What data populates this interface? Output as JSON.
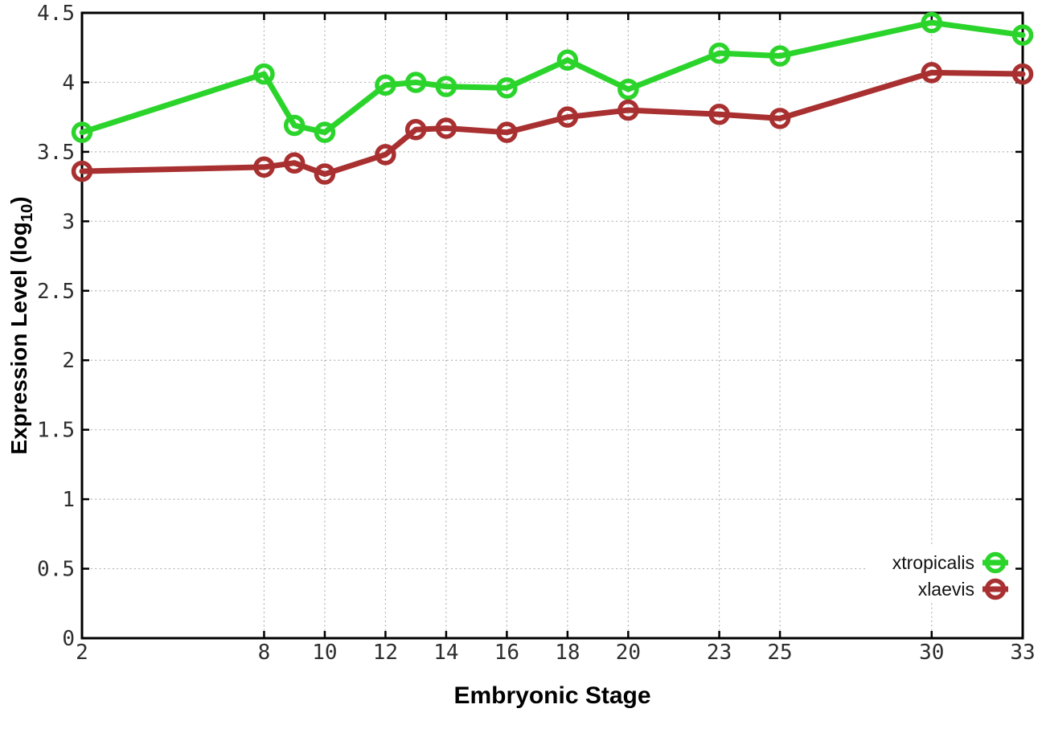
{
  "figure": {
    "background": "#ffffff"
  },
  "chart_data": {
    "type": "line",
    "title": "",
    "xlabel": "Embryonic Stage",
    "ylabel": "Expression Level (log10)",
    "ylabel_parts": {
      "prefix": "Expression Level (log",
      "sub": "10",
      "suffix": ")"
    },
    "xlim": [
      2,
      33
    ],
    "ylim": [
      0,
      4.5
    ],
    "grid": true,
    "legend_position": "inside-bottom-right",
    "x_ticks": [
      2,
      8,
      10,
      12,
      14,
      16,
      18,
      20,
      23,
      25,
      30,
      33
    ],
    "x_tick_labels": [
      "2",
      "8",
      "10",
      "12",
      "14",
      "16",
      "18",
      "20",
      "23",
      "25",
      "30",
      "33"
    ],
    "y_ticks": [
      0,
      0.5,
      1,
      1.5,
      2,
      2.5,
      3,
      3.5,
      4,
      4.5
    ],
    "y_tick_labels": [
      "0",
      "0.5",
      "1",
      "1.5",
      "2",
      "2.5",
      "3",
      "3.5",
      "4",
      "4.5"
    ],
    "x": [
      2,
      8,
      9,
      10,
      12,
      13,
      14,
      16,
      18,
      20,
      23,
      25,
      30,
      33
    ],
    "series": [
      {
        "name": "xtropicalis",
        "color": "#2bd42b",
        "marker": "open-circle",
        "values": [
          3.64,
          4.06,
          3.69,
          3.64,
          3.98,
          4.0,
          3.97,
          3.96,
          4.16,
          3.95,
          4.21,
          4.19,
          4.43,
          4.34
        ]
      },
      {
        "name": "xlaevis",
        "color": "#a93030",
        "marker": "open-circle",
        "values": [
          3.36,
          3.39,
          3.42,
          3.34,
          3.48,
          3.66,
          3.67,
          3.64,
          3.75,
          3.8,
          3.77,
          3.74,
          4.07,
          4.06
        ]
      }
    ],
    "axis_color": "#000000",
    "grid_color": "#b4b4b4",
    "tick_label_color": "#2e2e2e"
  }
}
